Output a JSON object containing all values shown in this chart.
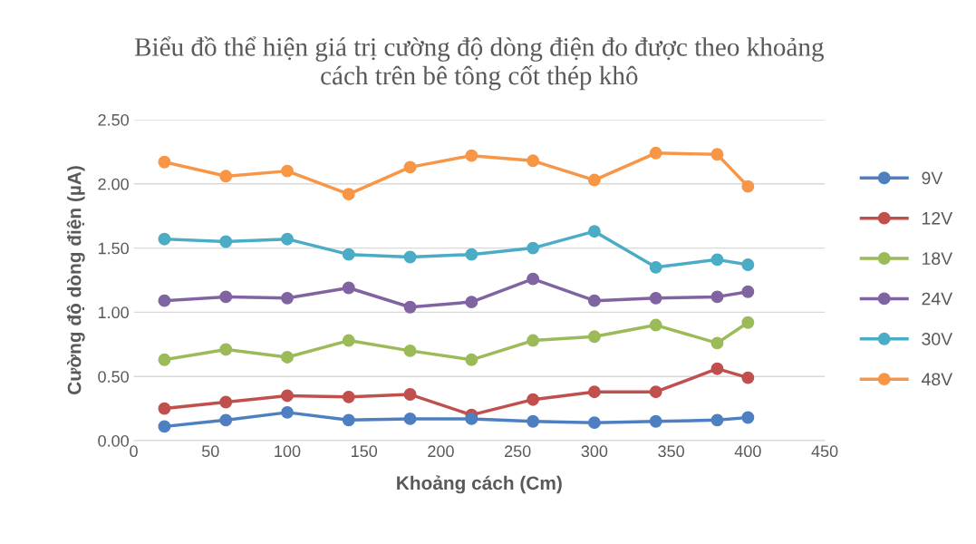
{
  "chart_data": {
    "type": "line",
    "title": "Biểu đồ thể hiện giá trị cường độ dòng điện đo được theo khoảng\ncách trên bê tông cốt thép khô",
    "xlabel": "Khoảng cách (Cm)",
    "ylabel": "Cường độ dòng điện (µA)",
    "x": [
      20,
      60,
      100,
      140,
      180,
      220,
      260,
      300,
      340,
      380,
      400
    ],
    "series": [
      {
        "name": "9V",
        "color": "#4e7fc1",
        "values": [
          0.11,
          0.16,
          0.22,
          0.16,
          0.17,
          0.17,
          0.15,
          0.14,
          0.15,
          0.16,
          0.18
        ]
      },
      {
        "name": "12V",
        "color": "#c0504d",
        "values": [
          0.25,
          0.3,
          0.35,
          0.34,
          0.36,
          0.2,
          0.32,
          0.38,
          0.38,
          0.56,
          0.49
        ]
      },
      {
        "name": "18V",
        "color": "#9bbb59",
        "values": [
          0.63,
          0.71,
          0.65,
          0.78,
          0.7,
          0.63,
          0.78,
          0.81,
          0.9,
          0.76,
          0.92
        ]
      },
      {
        "name": "24V",
        "color": "#8064a2",
        "values": [
          1.09,
          1.12,
          1.11,
          1.19,
          1.04,
          1.08,
          1.26,
          1.09,
          1.11,
          1.12,
          1.16
        ]
      },
      {
        "name": "30V",
        "color": "#4bacc6",
        "values": [
          1.57,
          1.55,
          1.57,
          1.45,
          1.43,
          1.45,
          1.5,
          1.63,
          1.35,
          1.41,
          1.37
        ]
      },
      {
        "name": "48V",
        "color": "#f79646",
        "values": [
          2.17,
          2.06,
          2.1,
          1.92,
          2.13,
          2.22,
          2.18,
          2.03,
          2.24,
          2.23,
          1.98
        ]
      }
    ],
    "xlim": [
      0,
      450
    ],
    "xticks": [
      0,
      50,
      100,
      150,
      200,
      250,
      300,
      350,
      400,
      450
    ],
    "ylim": [
      0,
      2.5
    ],
    "yticks": [
      {
        "value": 0,
        "label": "0.00"
      },
      {
        "value": 0.5,
        "label": "0.50"
      },
      {
        "value": 1,
        "label": "1.00"
      },
      {
        "value": 1.5,
        "label": "1.50"
      },
      {
        "value": 2,
        "label": "2.00"
      },
      {
        "value": 2.5,
        "label": "2.50"
      }
    ],
    "grid": "y",
    "legend": "right",
    "marker": "circle",
    "line_style": "solid"
  }
}
